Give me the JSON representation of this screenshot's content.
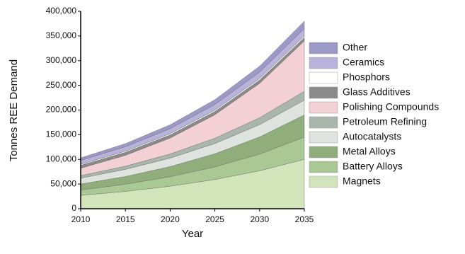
{
  "chart_data": {
    "type": "stacked_area",
    "xlabel": "Year",
    "ylabel": "Tonnes REE Demand",
    "x": [
      2010,
      2015,
      2020,
      2025,
      2030,
      2035
    ],
    "xlim": [
      2010,
      2035
    ],
    "xticks": [
      2010,
      2015,
      2020,
      2025,
      2030,
      2035
    ],
    "ylim": [
      0,
      400000
    ],
    "yticks": [
      0,
      {
        "value": 50000,
        "label": "50,000"
      },
      {
        "value": 100000,
        "label": "100,000"
      },
      {
        "value": 150000,
        "label": "150,000"
      },
      {
        "value": 200000,
        "label": "200,000"
      },
      {
        "value": 250000,
        "label": "250,000"
      },
      {
        "value": 300000,
        "label": "300,000"
      },
      {
        "value": 350000,
        "label": "350,000"
      },
      {
        "value": 400000,
        "label": "400,000"
      }
    ],
    "legend": "right",
    "series": [
      {
        "name": "Other",
        "color": "#9d99c6",
        "values": [
          5000,
          6200,
          7800,
          9700,
          12000,
          15000
        ]
      },
      {
        "name": "Ceramics",
        "color": "#b9b2da",
        "values": [
          8000,
          9100,
          10300,
          11600,
          13200,
          15000
        ]
      },
      {
        "name": "Phosphors",
        "color": "#ffffff",
        "values": [
          2000,
          2200,
          2400,
          2600,
          2800,
          3000
        ]
      },
      {
        "name": "Glass Additives",
        "color": "#8a8a8a",
        "values": [
          6000,
          6200,
          6400,
          6600,
          6800,
          7000
        ]
      },
      {
        "name": "Polishing Compounds",
        "color": "#f2d0d6",
        "values": [
          15000,
          22000,
          32300,
          47500,
          69700,
          102000
        ]
      },
      {
        "name": "Petroleum Refining",
        "color": "#a9b5ad",
        "values": [
          5000,
          6500,
          8300,
          10800,
          13900,
          18000
        ]
      },
      {
        "name": "Autocatalysts",
        "color": "#dfe3df",
        "values": [
          12000,
          14400,
          17300,
          20800,
          25000,
          30000
        ]
      },
      {
        "name": "Metal Alloys",
        "color": "#8fae7c",
        "values": [
          12000,
          15600,
          20400,
          26500,
          34600,
          45000
        ]
      },
      {
        "name": "Battery Alloys",
        "color": "#a9c893",
        "values": [
          11000,
          14600,
          19300,
          25600,
          33900,
          45000
        ]
      },
      {
        "name": "Magnets",
        "color": "#d2e5ba",
        "values": [
          27000,
          35100,
          45600,
          59200,
          76900,
          100000
        ]
      }
    ]
  }
}
